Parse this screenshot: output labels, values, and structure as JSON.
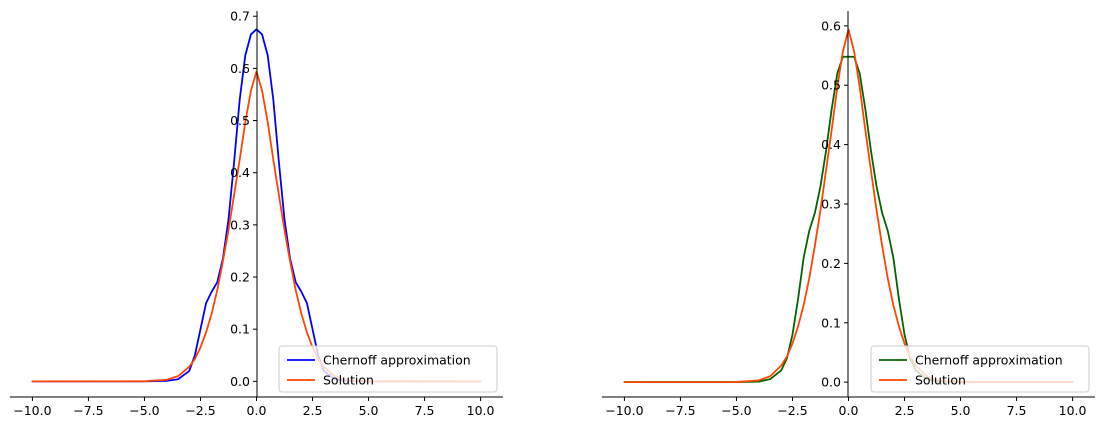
{
  "chart_data": [
    {
      "type": "line",
      "title": "",
      "xlabel": "",
      "ylabel": "",
      "xlim": [
        -11,
        11
      ],
      "ylim": [
        -0.03,
        0.71
      ],
      "xticks": [
        -10,
        -7.5,
        -5,
        -2.5,
        0,
        2.5,
        5,
        7.5,
        10
      ],
      "xtick_labels": [
        "−10.0",
        "−7.5",
        "−5.0",
        "−2.5",
        "0.0",
        "2.5",
        "5.0",
        "7.5",
        "10.0"
      ],
      "yticks": [
        0,
        0.1,
        0.2,
        0.3,
        0.4,
        0.5,
        0.6,
        0.7
      ],
      "ytick_labels": [
        "0.0",
        "0.1",
        "0.2",
        "0.3",
        "0.4",
        "0.5",
        "0.6",
        "0.7"
      ],
      "grid": false,
      "legend_position": "bottom-right",
      "series": [
        {
          "name": "Chernoff approximation",
          "color": "#0000ff",
          "x": [
            -10,
            -5,
            -4,
            -3.5,
            -3,
            -2.75,
            -2.5,
            -2.25,
            -2,
            -1.75,
            -1.5,
            -1.25,
            -1,
            -0.75,
            -0.5,
            -0.25,
            0,
            0.25,
            0.5,
            0.75,
            1,
            1.25,
            1.5,
            1.75,
            2,
            2.25,
            2.5,
            2.75,
            3,
            3.5,
            4,
            5,
            10
          ],
          "y": [
            0,
            0,
            0.001,
            0.004,
            0.02,
            0.05,
            0.1,
            0.15,
            0.172,
            0.19,
            0.235,
            0.31,
            0.42,
            0.54,
            0.625,
            0.665,
            0.675,
            0.665,
            0.625,
            0.54,
            0.42,
            0.31,
            0.235,
            0.19,
            0.172,
            0.15,
            0.1,
            0.05,
            0.02,
            0.004,
            0.001,
            0,
            0
          ]
        },
        {
          "name": "Solution",
          "color": "#ff4500",
          "x": [
            -10,
            -5,
            -4,
            -3.5,
            -3,
            -2.75,
            -2.5,
            -2.25,
            -2,
            -1.75,
            -1.5,
            -1.25,
            -1,
            -0.75,
            -0.5,
            -0.25,
            0,
            0.25,
            0.5,
            0.75,
            1,
            1.25,
            1.5,
            1.75,
            2,
            2.25,
            2.5,
            2.75,
            3,
            3.5,
            4,
            5,
            10
          ],
          "y": [
            0,
            0.0002,
            0.003,
            0.01,
            0.028,
            0.043,
            0.065,
            0.094,
            0.13,
            0.175,
            0.23,
            0.29,
            0.357,
            0.425,
            0.497,
            0.557,
            0.594,
            0.557,
            0.497,
            0.425,
            0.357,
            0.29,
            0.23,
            0.175,
            0.13,
            0.094,
            0.065,
            0.043,
            0.028,
            0.01,
            0.003,
            0.0002,
            0
          ]
        }
      ]
    },
    {
      "type": "line",
      "title": "",
      "xlabel": "",
      "ylabel": "",
      "xlim": [
        -11,
        11
      ],
      "ylim": [
        -0.025,
        0.625
      ],
      "xticks": [
        -10,
        -7.5,
        -5,
        -2.5,
        0,
        2.5,
        5,
        7.5,
        10
      ],
      "xtick_labels": [
        "−10.0",
        "−7.5",
        "−5.0",
        "−2.5",
        "0.0",
        "2.5",
        "5.0",
        "7.5",
        "10.0"
      ],
      "yticks": [
        0,
        0.1,
        0.2,
        0.3,
        0.4,
        0.5,
        0.6
      ],
      "ytick_labels": [
        "0.0",
        "0.1",
        "0.2",
        "0.3",
        "0.4",
        "0.5",
        "0.6"
      ],
      "grid": false,
      "legend_position": "bottom-right",
      "series": [
        {
          "name": "Chernoff approximation",
          "color": "#006400",
          "x": [
            -10,
            -5,
            -4,
            -3.5,
            -3,
            -2.75,
            -2.5,
            -2.25,
            -2,
            -1.75,
            -1.5,
            -1.25,
            -1,
            -0.75,
            -0.5,
            -0.25,
            0,
            0.25,
            0.5,
            0.75,
            1,
            1.25,
            1.5,
            1.75,
            2,
            2.25,
            2.5,
            2.75,
            3,
            3.5,
            4,
            5,
            10
          ],
          "y": [
            0,
            0.0001,
            0.001,
            0.005,
            0.02,
            0.04,
            0.08,
            0.14,
            0.21,
            0.255,
            0.285,
            0.33,
            0.39,
            0.46,
            0.52,
            0.548,
            0.548,
            0.548,
            0.52,
            0.46,
            0.39,
            0.33,
            0.285,
            0.255,
            0.21,
            0.14,
            0.08,
            0.04,
            0.02,
            0.005,
            0.001,
            0.0001,
            0
          ]
        },
        {
          "name": "Solution",
          "color": "#ff4500",
          "x": [
            -10,
            -5,
            -4,
            -3.5,
            -3,
            -2.75,
            -2.5,
            -2.25,
            -2,
            -1.75,
            -1.5,
            -1.25,
            -1,
            -0.75,
            -0.5,
            -0.25,
            0,
            0.25,
            0.5,
            0.75,
            1,
            1.25,
            1.5,
            1.75,
            2,
            2.25,
            2.5,
            2.75,
            3,
            3.5,
            4,
            5,
            10
          ],
          "y": [
            0,
            0.0002,
            0.003,
            0.01,
            0.028,
            0.043,
            0.065,
            0.094,
            0.13,
            0.175,
            0.23,
            0.29,
            0.357,
            0.425,
            0.497,
            0.557,
            0.594,
            0.557,
            0.497,
            0.425,
            0.357,
            0.29,
            0.23,
            0.175,
            0.13,
            0.094,
            0.065,
            0.043,
            0.028,
            0.01,
            0.003,
            0.0002,
            0
          ]
        }
      ]
    }
  ]
}
